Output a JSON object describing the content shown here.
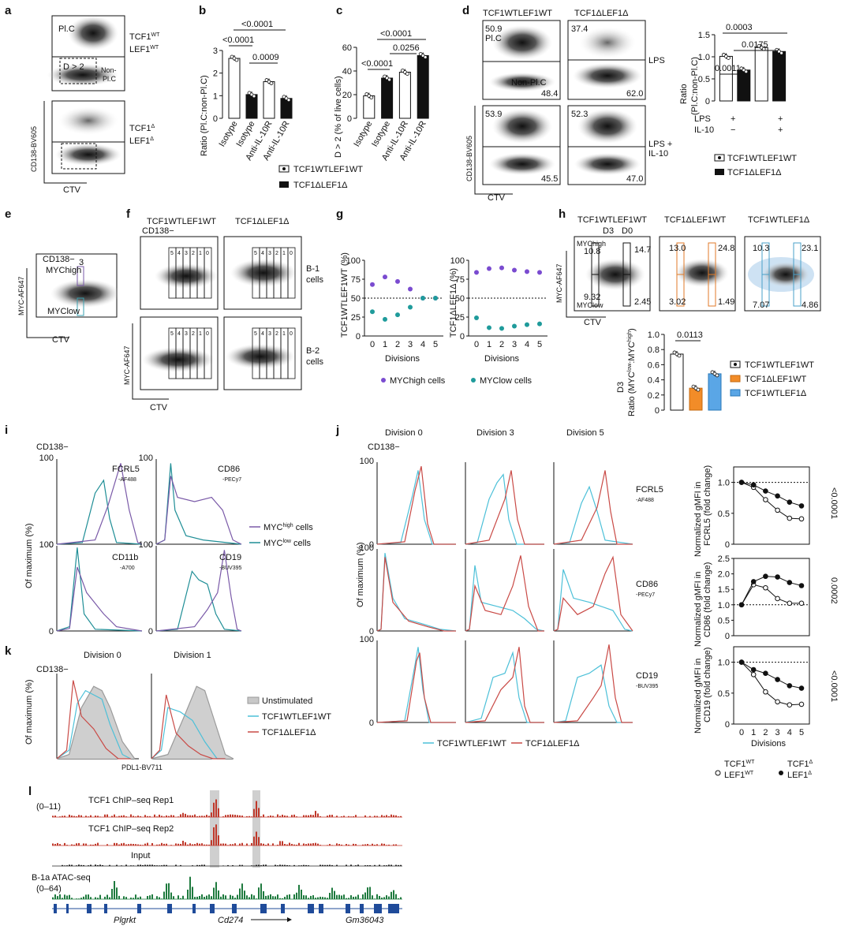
{
  "panels": {
    "a": {
      "letter": "a",
      "gate_plc": "Pl.C",
      "gate_d2": "D > 2",
      "gate_nonplc": "Non-\nPl.C",
      "geno_wt_top": "TCF1",
      "geno_wt_sup": "WT",
      "geno_wt_bot": "LEF1",
      "geno_wt_sup2": "WT",
      "geno_d_top": "TCF1",
      "geno_d_sup": "Δ",
      "geno_d_bot": "LEF1",
      "geno_d_sup2": "Δ",
      "yaxis": "CD138-BV605",
      "xaxis": "CTV"
    },
    "b": {
      "letter": "b",
      "ylabel": "Ratio (Pl.C:non-Pl.C)",
      "yticks": [
        "0",
        "1",
        "2",
        "3"
      ],
      "xcats": [
        "Isotype",
        "Isotype",
        "Anti-IL-10R",
        "Anti-IL-10R"
      ],
      "p1": "<0.0001",
      "p2": "<0.0001",
      "p3": "0.0009"
    },
    "c": {
      "letter": "c",
      "ylabel": "D > 2 (% of live cells)",
      "yticks": [
        "0",
        "20",
        "40",
        "60"
      ],
      "xcats": [
        "Isotype",
        "Isotype",
        "Anti-IL-10R",
        "Anti-IL-10R"
      ],
      "p1": "<0.0001",
      "p2": "<0.0001",
      "p3": "0.0256"
    },
    "legend_bc": {
      "wt": "TCF1WTLEF1WT",
      "d": "TCF1ΔLEF1Δ"
    },
    "d": {
      "letter": "d",
      "col1": "TCF1WTLEF1WT",
      "col2": "TCF1ΔLEF1Δ",
      "row1": "LPS",
      "row2": "LPS +\nIL-10",
      "v_tl_top": "50.9",
      "v_tl_plc": "Pl.C",
      "v_tl_non": "Non-Pl.C",
      "v_tl_bot": "48.4",
      "v_tr_top": "37.4",
      "v_tr_bot": "62.0",
      "v_bl_top": "53.9",
      "v_bl_bot": "45.5",
      "v_br_top": "52.3",
      "v_br_bot": "47.0",
      "yaxis": "CD138-BV605",
      "xaxis": "CTV",
      "bar_ylabel": "Ratio\n(Pl.C:non-Pl.C)",
      "bar_yticks": [
        "0",
        "0.5",
        "1.0",
        "1.5"
      ],
      "p1": "0.0011",
      "p2": "0.0175",
      "p3": "0.0003",
      "lps_label": "LPS",
      "il10_label": "IL-10",
      "lps_vals": [
        "+",
        "+",
        "+",
        "+"
      ],
      "il10_vals": [
        "−",
        "−",
        "+",
        "+"
      ],
      "legend_wt": "TCF1WTLEF1WT",
      "legend_d": "TCF1ΔLEF1Δ"
    },
    "e": {
      "letter": "e",
      "cd138": "CD138−",
      "mychigh": "MYChigh",
      "myclow": "MYClow",
      "gate": "3",
      "yaxis": "MYC-AF647",
      "xaxis": "CTV"
    },
    "f": {
      "letter": "f",
      "col1": "TCF1WTLEF1WT",
      "col2": "TCF1ΔLEF1Δ",
      "cd138": "CD138−",
      "row1": "B-1\ncells",
      "row2": "B-2\ncells",
      "gates": [
        "5",
        "4",
        "3",
        "2",
        "1",
        "0"
      ],
      "yaxis": "MYC-AF647",
      "xaxis": "CTV"
    },
    "g": {
      "letter": "g",
      "ylabel1": "TCF1WTLEF1WT (%)",
      "ylabel2": "TCF1ΔLEF1Δ (%)",
      "yticks": [
        "0",
        "25",
        "50",
        "75",
        "100"
      ],
      "xticks": [
        "0",
        "1",
        "2",
        "3",
        "4",
        "5"
      ],
      "xlabel": "Divisions",
      "leg_high": "MYChigh cells",
      "leg_low": "MYClow cells"
    },
    "h": {
      "letter": "h",
      "col1": "TCF1WTLEF1WT",
      "col2": "TCF1ΔLEF1WT",
      "col3": "TCF1WTLEF1Δ",
      "d3": "D3",
      "d0": "D0",
      "mychigh": "MYChigh",
      "myclow": "MYClow",
      "p1_tl": "10.8",
      "p1_tr": "14.7",
      "p1_bl": "9.32",
      "p1_br": "2.45",
      "p2_tl": "13.0",
      "p2_tr": "24.8",
      "p2_bl": "3.02",
      "p2_br": "1.49",
      "p3_tl": "10.3",
      "p3_tr": "23.1",
      "p3_bl": "7.07",
      "p3_br": "4.86",
      "yaxis": "MYC-AF647",
      "xaxis": "CTV",
      "bar_ylabel": "D3\nRatio (MYClow:MYChigh)",
      "bar_yticks": [
        "0",
        "0.2",
        "0.4",
        "0.6",
        "0.8",
        "1.0"
      ],
      "pval": "0.0113",
      "leg1": "TCF1WTLEF1WT",
      "leg2": "TCF1ΔLEF1WT",
      "leg3": "TCF1WTLEF1Δ"
    },
    "i": {
      "letter": "i",
      "cd138": "CD138−",
      "m1": "FCRL5",
      "m1f": "-AF488",
      "m2": "CD86",
      "m2f": "-PECy7",
      "m3": "CD11b",
      "m3f": "-A700",
      "m4": "CD19",
      "m4f": "-BUV395",
      "ylabel": "Of maximum (%)",
      "ytick": "100",
      "ytick0": "0",
      "leg_high": "MYChigh cells",
      "leg_low": "MYClow cells"
    },
    "j": {
      "letter": "j",
      "div0": "Division 0",
      "div3": "Division 3",
      "div5": "Division 5",
      "cd138": "CD138−",
      "m1": "FCRL5",
      "m1f": "-AF488",
      "m2": "CD86",
      "m2f": "-PECy7",
      "m3": "CD19",
      "m3f": "-BUV395",
      "ylabel": "Of maximum (%)",
      "ytick": "100",
      "ytick0": "0",
      "leg_wt": "TCF1WTLEF1WT",
      "leg_d": "TCF1ΔLEF1Δ",
      "r1_ylabel": "Normalized gMFI in\nFCRL5 (fold change)",
      "r2_ylabel": "Normalized gMFI in\nCD86 (fold change)",
      "r3_ylabel": "Normalized gMFI in\nCD19 (fold change)",
      "r1_p": "<0.0001",
      "r2_p": "0.0002",
      "r3_p": "<0.0001",
      "xlabel": "Divisions",
      "legend_wt": "TCF1WT\nLEF1WT",
      "legend_d": "TCF1Δ\nLEF1Δ"
    },
    "k": {
      "letter": "k",
      "div0": "Division 0",
      "div1": "Division 1",
      "cd138": "CD138−",
      "ylabel": "Of maximum (%)",
      "xlabel": "PDL1-BV711",
      "leg_unstim": "Unstimulated",
      "leg_wt": "TCF1WTLEF1WT",
      "leg_d": "TCF1ΔLEF1Δ"
    },
    "l": {
      "letter": "l",
      "t1": "TCF1 ChIP–seq Rep1",
      "t1range": "(0–11)",
      "t2": "TCF1 ChIP–seq Rep2",
      "t3": "Input",
      "t4": "B-1a ATAC-seq",
      "t4range": "(0–64)",
      "gene1": "Plgrkt",
      "gene2": "Cd274",
      "gene3": "Gm36043"
    }
  },
  "chart_data": [
    {
      "type": "bar",
      "panel": "b",
      "categories": [
        "Isotype WT",
        "Isotype Δ",
        "Anti-IL-10R WT",
        "Anti-IL-10R Δ"
      ],
      "values": [
        2.65,
        1.05,
        1.62,
        0.88
      ],
      "ylim": [
        0,
        3
      ],
      "ylabel": "Ratio (Pl.C:non-Pl.C)"
    },
    {
      "type": "bar",
      "panel": "c",
      "categories": [
        "Isotype WT",
        "Isotype Δ",
        "Anti-IL-10R WT",
        "Anti-IL-10R Δ"
      ],
      "values": [
        19,
        34,
        39,
        53
      ],
      "ylim": [
        0,
        60
      ],
      "ylabel": "D > 2 (% of live cells)"
    },
    {
      "type": "bar",
      "panel": "d",
      "categories": [
        "LPS WT",
        "LPS Δ",
        "LPS+IL-10 WT",
        "LPS+IL-10 Δ"
      ],
      "values": [
        1.01,
        0.7,
        1.21,
        1.12
      ],
      "ylim": [
        0,
        1.5
      ],
      "ylabel": "Ratio (Pl.C:non-Pl.C)"
    },
    {
      "type": "scatter",
      "panel": "g-left",
      "x": [
        0,
        1,
        2,
        3,
        4,
        5
      ],
      "series": [
        {
          "name": "MYChigh cells",
          "values": [
            68,
            78,
            72,
            62,
            50,
            50
          ]
        },
        {
          "name": "MYClow cells",
          "values": [
            32,
            22,
            28,
            38,
            50,
            50
          ]
        }
      ],
      "ylim": [
        0,
        100
      ]
    },
    {
      "type": "scatter",
      "panel": "g-right",
      "x": [
        0,
        1,
        2,
        3,
        4,
        5
      ],
      "series": [
        {
          "name": "MYChigh cells",
          "values": [
            84,
            89,
            90,
            87,
            85,
            84
          ]
        },
        {
          "name": "MYClow cells",
          "values": [
            24,
            11,
            10,
            13,
            15,
            16
          ]
        }
      ],
      "ylim": [
        0,
        100
      ]
    },
    {
      "type": "bar",
      "panel": "h",
      "categories": [
        "TCF1WTLEF1WT",
        "TCF1ΔLEF1WT",
        "TCF1WTLEF1Δ"
      ],
      "values": [
        0.74,
        0.29,
        0.48
      ],
      "ylim": [
        0,
        1.0
      ],
      "ylabel": "Ratio (MYClow:MYChigh)"
    },
    {
      "type": "line",
      "panel": "j-FCRL5",
      "x": [
        0,
        1,
        2,
        3,
        4,
        5
      ],
      "series": [
        {
          "name": "TCF1WTLEF1WT",
          "values": [
            1.0,
            0.92,
            0.72,
            0.55,
            0.42,
            0.41
          ]
        },
        {
          "name": "TCF1ΔLEF1Δ",
          "values": [
            1.0,
            0.96,
            0.86,
            0.78,
            0.68,
            0.62
          ]
        }
      ],
      "ylim": [
        0,
        1.25
      ]
    },
    {
      "type": "line",
      "panel": "j-CD86",
      "x": [
        0,
        1,
        2,
        3,
        4,
        5
      ],
      "series": [
        {
          "name": "TCF1WTLEF1WT",
          "values": [
            1.0,
            1.65,
            1.55,
            1.2,
            1.05,
            1.05
          ]
        },
        {
          "name": "TCF1ΔLEF1Δ",
          "values": [
            1.0,
            1.75,
            1.92,
            1.9,
            1.72,
            1.62
          ]
        }
      ],
      "ylim": [
        0,
        2.5
      ]
    },
    {
      "type": "line",
      "panel": "j-CD19",
      "x": [
        0,
        1,
        2,
        3,
        4,
        5
      ],
      "series": [
        {
          "name": "TCF1WTLEF1WT",
          "values": [
            1.0,
            0.8,
            0.52,
            0.36,
            0.31,
            0.32
          ]
        },
        {
          "name": "TCF1ΔLEF1Δ",
          "values": [
            1.0,
            0.88,
            0.82,
            0.72,
            0.62,
            0.58
          ]
        }
      ],
      "ylim": [
        0,
        1.25
      ]
    }
  ]
}
